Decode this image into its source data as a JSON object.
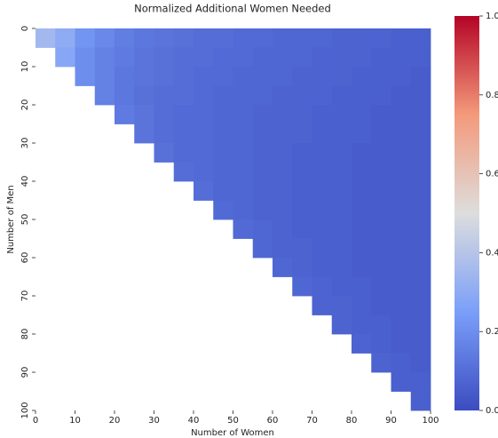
{
  "chart_data": {
    "type": "heatmap",
    "title": "Normalized Additional Women Needed",
    "x_label": "Number of Women",
    "y_label": "Number of Men",
    "xlim": [
      0,
      100
    ],
    "ylim": [
      0,
      100
    ],
    "y_inverted": true,
    "xticks": [
      0,
      10,
      20,
      30,
      40,
      50,
      60,
      70,
      80,
      90,
      100
    ],
    "yticks": [
      0,
      10,
      20,
      30,
      40,
      50,
      60,
      70,
      80,
      90,
      100
    ],
    "colormap": "coolwarm",
    "clim": [
      0,
      1
    ],
    "cticks": [
      {
        "value": 0,
        "label": "0.0"
      },
      0.2,
      0.4,
      0.6,
      0.8,
      {
        "value": 1,
        "label": "1.0"
      }
    ],
    "values": [
      [
        0.35,
        0.3,
        0.22,
        0.18,
        0.15,
        0.13,
        0.12,
        0.11,
        0.1,
        0.1,
        0.09,
        0.09,
        0.08,
        0.08,
        0.08,
        0.07,
        0.07,
        0.07,
        0.06,
        0.06
      ],
      [
        null,
        0.28,
        0.2,
        0.16,
        0.14,
        0.12,
        0.11,
        0.1,
        0.1,
        0.09,
        0.09,
        0.08,
        0.08,
        0.08,
        0.07,
        0.07,
        0.07,
        0.06,
        0.06,
        0.06
      ],
      [
        null,
        null,
        0.2,
        0.16,
        0.13,
        0.12,
        0.11,
        0.1,
        0.09,
        0.09,
        0.08,
        0.08,
        0.08,
        0.07,
        0.07,
        0.07,
        0.06,
        0.06,
        0.06,
        0.05
      ],
      [
        null,
        null,
        null,
        0.16,
        0.13,
        0.11,
        0.1,
        0.1,
        0.09,
        0.08,
        0.08,
        0.08,
        0.07,
        0.07,
        0.07,
        0.06,
        0.06,
        0.06,
        0.05,
        0.05
      ],
      [
        null,
        null,
        null,
        null,
        0.14,
        0.12,
        0.1,
        0.09,
        0.09,
        0.08,
        0.08,
        0.07,
        0.07,
        0.07,
        0.06,
        0.06,
        0.06,
        0.05,
        0.05,
        0.05
      ],
      [
        null,
        null,
        null,
        null,
        null,
        0.12,
        0.1,
        0.09,
        0.09,
        0.08,
        0.08,
        0.07,
        0.07,
        0.07,
        0.06,
        0.06,
        0.06,
        0.05,
        0.05,
        0.05
      ],
      [
        null,
        null,
        null,
        null,
        null,
        null,
        0.11,
        0.09,
        0.09,
        0.08,
        0.08,
        0.07,
        0.07,
        0.06,
        0.06,
        0.06,
        0.05,
        0.05,
        0.05,
        0.05
      ],
      [
        null,
        null,
        null,
        null,
        null,
        null,
        null,
        0.1,
        0.09,
        0.08,
        0.08,
        0.07,
        0.07,
        0.06,
        0.06,
        0.06,
        0.05,
        0.05,
        0.05,
        0.05
      ],
      [
        null,
        null,
        null,
        null,
        null,
        null,
        null,
        null,
        0.1,
        0.08,
        0.08,
        0.07,
        0.07,
        0.06,
        0.06,
        0.06,
        0.05,
        0.05,
        0.05,
        0.05
      ],
      [
        null,
        null,
        null,
        null,
        null,
        null,
        null,
        null,
        null,
        0.09,
        0.08,
        0.07,
        0.07,
        0.06,
        0.06,
        0.06,
        0.05,
        0.05,
        0.05,
        0.05
      ],
      [
        null,
        null,
        null,
        null,
        null,
        null,
        null,
        null,
        null,
        null,
        0.09,
        0.08,
        0.07,
        0.06,
        0.06,
        0.06,
        0.05,
        0.05,
        0.05,
        0.05
      ],
      [
        null,
        null,
        null,
        null,
        null,
        null,
        null,
        null,
        null,
        null,
        null,
        0.08,
        0.07,
        0.07,
        0.06,
        0.06,
        0.05,
        0.05,
        0.05,
        0.05
      ],
      [
        null,
        null,
        null,
        null,
        null,
        null,
        null,
        null,
        null,
        null,
        null,
        null,
        0.08,
        0.07,
        0.06,
        0.06,
        0.05,
        0.05,
        0.05,
        0.05
      ],
      [
        null,
        null,
        null,
        null,
        null,
        null,
        null,
        null,
        null,
        null,
        null,
        null,
        null,
        0.08,
        0.07,
        0.06,
        0.06,
        0.05,
        0.05,
        0.05
      ],
      [
        null,
        null,
        null,
        null,
        null,
        null,
        null,
        null,
        null,
        null,
        null,
        null,
        null,
        null,
        0.07,
        0.07,
        0.06,
        0.05,
        0.05,
        0.05
      ],
      [
        null,
        null,
        null,
        null,
        null,
        null,
        null,
        null,
        null,
        null,
        null,
        null,
        null,
        null,
        null,
        0.07,
        0.06,
        0.06,
        0.05,
        0.05
      ],
      [
        null,
        null,
        null,
        null,
        null,
        null,
        null,
        null,
        null,
        null,
        null,
        null,
        null,
        null,
        null,
        null,
        0.07,
        0.06,
        0.05,
        0.05
      ],
      [
        null,
        null,
        null,
        null,
        null,
        null,
        null,
        null,
        null,
        null,
        null,
        null,
        null,
        null,
        null,
        null,
        null,
        0.07,
        0.06,
        0.05
      ],
      [
        null,
        null,
        null,
        null,
        null,
        null,
        null,
        null,
        null,
        null,
        null,
        null,
        null,
        null,
        null,
        null,
        null,
        null,
        0.06,
        0.06
      ],
      [
        null,
        null,
        null,
        null,
        null,
        null,
        null,
        null,
        null,
        null,
        null,
        null,
        null,
        null,
        null,
        null,
        null,
        null,
        null,
        0.06
      ]
    ]
  }
}
